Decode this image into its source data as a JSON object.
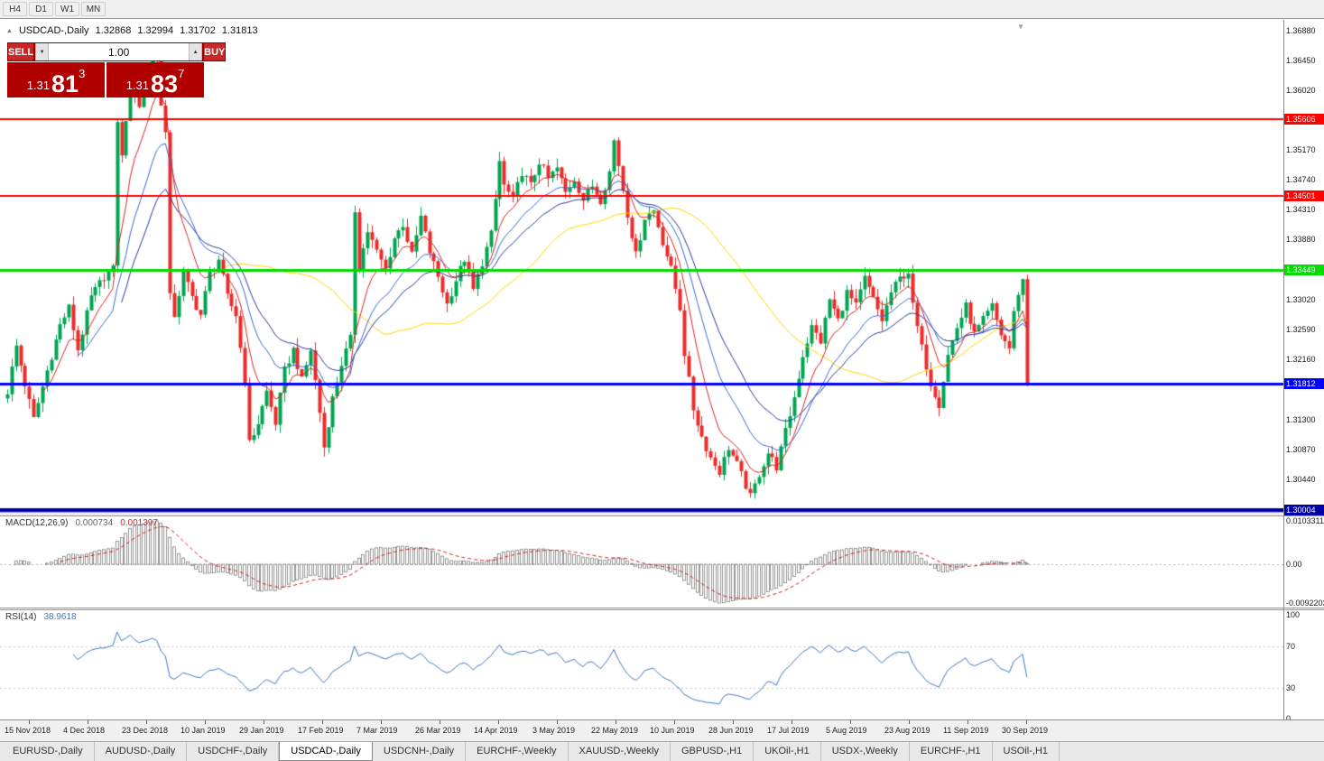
{
  "toolbar": {
    "timeframes": [
      "H4",
      "D1",
      "W1",
      "MN"
    ]
  },
  "chart": {
    "symbol_timeframe": "USDCAD-,Daily",
    "open": "1.32868",
    "high": "1.32994",
    "low": "1.31702",
    "close": "1.31813"
  },
  "icons": {
    "collapse": "▲",
    "shift": "▼",
    "vol_up": "▲",
    "vol_down": "▼"
  },
  "trade_panel": {
    "sell_label": "SELL",
    "buy_label": "BUY",
    "volume": "1.00",
    "sell_price_prefix": "1.31",
    "sell_price_big": "81",
    "sell_price_sup": "3",
    "buy_price_prefix": "1.31",
    "buy_price_big": "83",
    "buy_price_sup": "7"
  },
  "price_axis": {
    "ticks": [
      {
        "price": 1.3688,
        "label": "1.36880"
      },
      {
        "price": 1.3645,
        "label": "1.36450"
      },
      {
        "price": 1.3602,
        "label": "1.36020"
      },
      {
        "price": 1.3517,
        "label": "1.35170"
      },
      {
        "price": 1.3474,
        "label": "1.34740"
      },
      {
        "price": 1.3431,
        "label": "1.34310"
      },
      {
        "price": 1.3388,
        "label": "1.33880"
      },
      {
        "price": 1.3302,
        "label": "1.33020"
      },
      {
        "price": 1.3259,
        "label": "1.32590"
      },
      {
        "price": 1.3216,
        "label": "1.32160"
      },
      {
        "price": 1.313,
        "label": "1.31300"
      },
      {
        "price": 1.3087,
        "label": "1.30870"
      },
      {
        "price": 1.3044,
        "label": "1.30440"
      }
    ]
  },
  "macd": {
    "label": "MACD(12,26,9)",
    "value1": "0.000734",
    "value2": "0.001397",
    "axis": {
      "max": 0.0103311,
      "min": -0.0092203,
      "ticks": [
        {
          "value": 0.0103311,
          "label": "0.0103311"
        },
        {
          "value": 0,
          "label": "0.00"
        },
        {
          "value": -0.0092203,
          "label": "-0.0092203"
        }
      ]
    }
  },
  "rsi": {
    "label": "RSI(14)",
    "value": "38.9618",
    "axis": {
      "ticks": [
        {
          "value": 100,
          "label": "100"
        },
        {
          "value": 70,
          "label": "70"
        },
        {
          "value": 30,
          "label": "30"
        },
        {
          "value": 0,
          "label": "0"
        }
      ],
      "levels": [
        70,
        30
      ]
    }
  },
  "date_axis": {
    "labels": [
      "15 Nov 2018",
      "4 Dec 2018",
      "23 Dec 2018",
      "10 Jan 2019",
      "29 Jan 2019",
      "17 Feb 2019",
      "7 Mar 2019",
      "26 Mar 2019",
      "14 Apr 2019",
      "3 May 2019",
      "22 May 2019",
      "10 Jun 2019",
      "28 Jun 2019",
      "17 Jul 2019",
      "5 Aug 2019",
      "23 Aug 2019",
      "11 Sep 2019",
      "30 Sep 2019"
    ]
  },
  "tabs": [
    {
      "label": "EURUSD-,Daily",
      "active": false
    },
    {
      "label": "AUDUSD-,Daily",
      "active": false
    },
    {
      "label": "USDCHF-,Daily",
      "active": false
    },
    {
      "label": "USDCAD-,Daily",
      "active": true
    },
    {
      "label": "USDCNH-,Daily",
      "active": false
    },
    {
      "label": "EURCHF-,Weekly",
      "active": false
    },
    {
      "label": "XAUUSD-,Weekly",
      "active": false
    },
    {
      "label": "GBPUSD-,H1",
      "active": false
    },
    {
      "label": "UKOil-,H1",
      "active": false
    },
    {
      "label": "USDX-,Weekly",
      "active": false
    },
    {
      "label": "EURCHF-,H1",
      "active": false
    },
    {
      "label": "USOil-,H1",
      "active": false
    }
  ],
  "chart_data": {
    "type": "candlestick",
    "symbol": "USDCAD",
    "timeframe": "Daily",
    "num_candles": 233,
    "current_close": 1.31813,
    "axis": {
      "price_max": 1.3703,
      "price_min": 1.2996
    },
    "colors": {
      "up": "#00A551",
      "down": "#EE2B2B"
    },
    "hlines": [
      {
        "price": 1.35606,
        "label": "1.35606",
        "color": "#FF0000",
        "width": 2
      },
      {
        "price": 1.34501,
        "label": "1.34501",
        "color": "#FF0000",
        "width": 2
      },
      {
        "price": 1.33449,
        "label": "1.33449",
        "color": "#00DD00",
        "width": 3
      },
      {
        "price": 1.31812,
        "label": "1.31812",
        "color": "#0000FF",
        "width": 3
      },
      {
        "price": 1.30004,
        "label": "1.30004",
        "color": "#0000A8",
        "width": 4
      }
    ],
    "moving_averages": [
      {
        "period": 50,
        "type": "sma",
        "color": "#FFD400",
        "width": 1
      },
      {
        "period": 26,
        "type": "ema",
        "color": "#27379B",
        "width": 1
      },
      {
        "period": 16,
        "type": "ema",
        "color": "#3A66D4",
        "width": 1
      },
      {
        "period": 8,
        "type": "ema",
        "color": "#DD2222",
        "width": 1
      }
    ],
    "price_anchors": [
      [
        0,
        1.317
      ],
      [
        2,
        1.3235
      ],
      [
        4,
        1.318
      ],
      [
        6,
        1.313
      ],
      [
        9,
        1.32
      ],
      [
        12,
        1.3265
      ],
      [
        14,
        1.329
      ],
      [
        16,
        1.323
      ],
      [
        19,
        1.3305
      ],
      [
        22,
        1.3335
      ],
      [
        24,
        1.3345
      ],
      [
        25,
        1.356
      ],
      [
        26,
        1.3505
      ],
      [
        28,
        1.362
      ],
      [
        30,
        1.358
      ],
      [
        32,
        1.3625
      ],
      [
        33,
        1.366
      ],
      [
        34,
        1.3645
      ],
      [
        35,
        1.3585
      ],
      [
        36,
        1.354
      ],
      [
        37,
        1.3305
      ],
      [
        38,
        1.328
      ],
      [
        40,
        1.334
      ],
      [
        42,
        1.3305
      ],
      [
        44,
        1.328
      ],
      [
        46,
        1.334
      ],
      [
        48,
        1.336
      ],
      [
        50,
        1.3305
      ],
      [
        52,
        1.328
      ],
      [
        54,
        1.3185
      ],
      [
        55,
        1.3095
      ],
      [
        57,
        1.3125
      ],
      [
        59,
        1.317
      ],
      [
        61,
        1.3125
      ],
      [
        63,
        1.32
      ],
      [
        65,
        1.323
      ],
      [
        67,
        1.3185
      ],
      [
        69,
        1.323
      ],
      [
        71,
        1.314
      ],
      [
        72,
        1.309
      ],
      [
        74,
        1.316
      ],
      [
        76,
        1.321
      ],
      [
        78,
        1.3245
      ],
      [
        79,
        1.343
      ],
      [
        80,
        1.335
      ],
      [
        82,
        1.34
      ],
      [
        84,
        1.337
      ],
      [
        86,
        1.3345
      ],
      [
        88,
        1.339
      ],
      [
        90,
        1.341
      ],
      [
        92,
        1.3365
      ],
      [
        94,
        1.342
      ],
      [
        96,
        1.337
      ],
      [
        98,
        1.3335
      ],
      [
        100,
        1.3295
      ],
      [
        102,
        1.333
      ],
      [
        104,
        1.336
      ],
      [
        106,
        1.3315
      ],
      [
        108,
        1.3355
      ],
      [
        110,
        1.3395
      ],
      [
        111,
        1.3445
      ],
      [
        112,
        1.35
      ],
      [
        113,
        1.3465
      ],
      [
        115,
        1.3445
      ],
      [
        117,
        1.3485
      ],
      [
        119,
        1.3465
      ],
      [
        121,
        1.35
      ],
      [
        123,
        1.3475
      ],
      [
        125,
        1.349
      ],
      [
        127,
        1.3455
      ],
      [
        129,
        1.3475
      ],
      [
        131,
        1.3445
      ],
      [
        133,
        1.3465
      ],
      [
        135,
        1.3445
      ],
      [
        137,
        1.3485
      ],
      [
        138,
        1.353
      ],
      [
        139,
        1.3495
      ],
      [
        141,
        1.3425
      ],
      [
        143,
        1.3365
      ],
      [
        145,
        1.342
      ],
      [
        147,
        1.343
      ],
      [
        149,
        1.3385
      ],
      [
        151,
        1.3345
      ],
      [
        153,
        1.329
      ],
      [
        154,
        1.3225
      ],
      [
        156,
        1.3145
      ],
      [
        158,
        1.3105
      ],
      [
        160,
        1.3075
      ],
      [
        162,
        1.3055
      ],
      [
        164,
        1.309
      ],
      [
        166,
        1.3065
      ],
      [
        168,
        1.3035
      ],
      [
        169,
        1.3018
      ],
      [
        171,
        1.3052
      ],
      [
        173,
        1.3082
      ],
      [
        175,
        1.3062
      ],
      [
        177,
        1.3112
      ],
      [
        179,
        1.3162
      ],
      [
        181,
        1.3222
      ],
      [
        183,
        1.3262
      ],
      [
        185,
        1.3242
      ],
      [
        187,
        1.3302
      ],
      [
        189,
        1.3272
      ],
      [
        191,
        1.3312
      ],
      [
        193,
        1.3292
      ],
      [
        195,
        1.3332
      ],
      [
        197,
        1.3302
      ],
      [
        199,
        1.3272
      ],
      [
        201,
        1.3312
      ],
      [
        203,
        1.3332
      ],
      [
        205,
        1.3342
      ],
      [
        206,
        1.3292
      ],
      [
        208,
        1.3232
      ],
      [
        210,
        1.3182
      ],
      [
        212,
        1.3152
      ],
      [
        214,
        1.3222
      ],
      [
        216,
        1.3262
      ],
      [
        218,
        1.3292
      ],
      [
        220,
        1.3252
      ],
      [
        222,
        1.3272
      ],
      [
        224,
        1.3292
      ],
      [
        226,
        1.3252
      ],
      [
        228,
        1.3232
      ],
      [
        229,
        1.3282
      ],
      [
        230,
        1.3312
      ],
      [
        231,
        1.333
      ],
      [
        232,
        1.31813
      ]
    ]
  }
}
